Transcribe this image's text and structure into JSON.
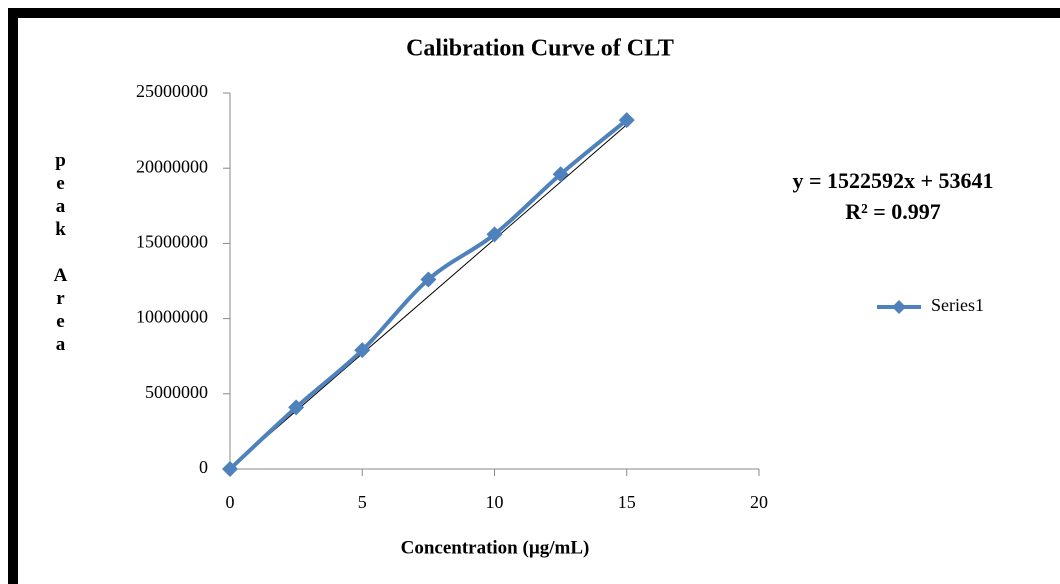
{
  "chart_data": {
    "type": "scatter",
    "title": "Calibration Curve of CLT",
    "x_label": "Concentration (µg/mL)",
    "y_label": "peak Area",
    "x": [
      0,
      2.5,
      5,
      7.5,
      10,
      12.5,
      15
    ],
    "series": [
      {
        "name": "Series1",
        "color": "#4f81bd",
        "values": [
          0,
          4100000,
          7900000,
          12600000,
          15600000,
          19600000,
          23200000
        ]
      }
    ],
    "smooth": true,
    "xlim": [
      0,
      20
    ],
    "xticks": [
      0,
      5,
      10,
      15,
      20
    ],
    "ylim": [
      0,
      25000000
    ],
    "yticks": [
      0,
      5000000,
      10000000,
      15000000,
      20000000,
      25000000
    ],
    "trendline": {
      "slope": 1522592,
      "intercept": 53641,
      "color": "#000000",
      "equation": "y = 1522592x + 53641",
      "r2_label": "R² = 0.997"
    },
    "legend": "right"
  }
}
